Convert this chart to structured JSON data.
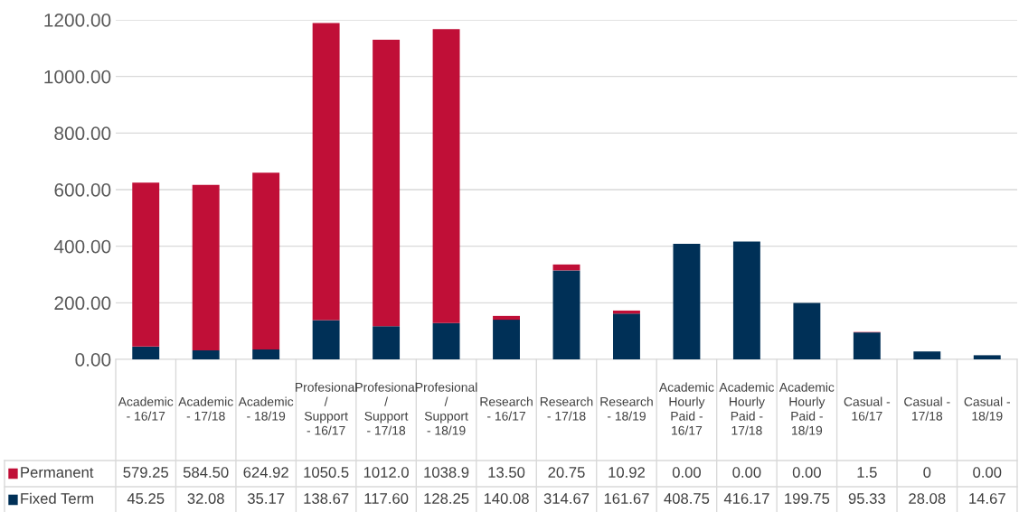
{
  "chart_data": {
    "type": "bar",
    "stacked": true,
    "categories": [
      "Academic - 16/17",
      "Academic - 17/18",
      "Academic - 18/19",
      "Profesional / Support - 16/17",
      "Profesional / Support - 17/18",
      "Profesional / Support - 18/19",
      "Research - 16/17",
      "Research - 17/18",
      "Research - 18/19",
      "Academic Hourly Paid - 16/17",
      "Academic Hourly Paid - 17/18",
      "Academic Hourly Paid - 18/19",
      "Casual - 16/17",
      "Casual - 17/18",
      "Casual - 18/19"
    ],
    "series": [
      {
        "name": "Fixed Term",
        "color": "#003057",
        "values": [
          45.25,
          32.08,
          35.17,
          138.67,
          117.6,
          128.25,
          140.08,
          314.67,
          161.67,
          408.75,
          416.17,
          199.75,
          95.33,
          28.08,
          14.67
        ],
        "value_labels": [
          "45.25",
          "32.08",
          "35.17",
          "138.67",
          "117.60",
          "128.25",
          "140.08",
          "314.67",
          "161.67",
          "408.75",
          "416.17",
          "199.75",
          "95.33",
          "28.08",
          "14.67"
        ]
      },
      {
        "name": "Permanent",
        "color": "#c00f37",
        "values": [
          579.25,
          584.5,
          624.92,
          1050.5,
          1012.0,
          1038.9,
          13.5,
          20.75,
          10.92,
          0.0,
          0.0,
          0.0,
          1.5,
          0,
          0.0
        ],
        "value_labels": [
          "579.25",
          "584.50",
          "624.92",
          "1050.5",
          "1012.0",
          "1038.9",
          "13.50",
          "20.75",
          "10.92",
          "0.00",
          "0.00",
          "0.00",
          "1.5",
          "0",
          "0.00"
        ]
      }
    ],
    "ylim": [
      0,
      1200
    ],
    "yticks": [
      {
        "value": 0,
        "label": "0.00"
      },
      {
        "value": 200,
        "label": "200.00"
      },
      {
        "value": 400,
        "label": "400.00"
      },
      {
        "value": 600,
        "label": "600.00"
      },
      {
        "value": 800,
        "label": "800.00"
      },
      {
        "value": 1000,
        "label": "1000.00"
      },
      {
        "value": 1200,
        "label": "1200.00"
      }
    ],
    "grid": "y",
    "legend": "bottom"
  }
}
